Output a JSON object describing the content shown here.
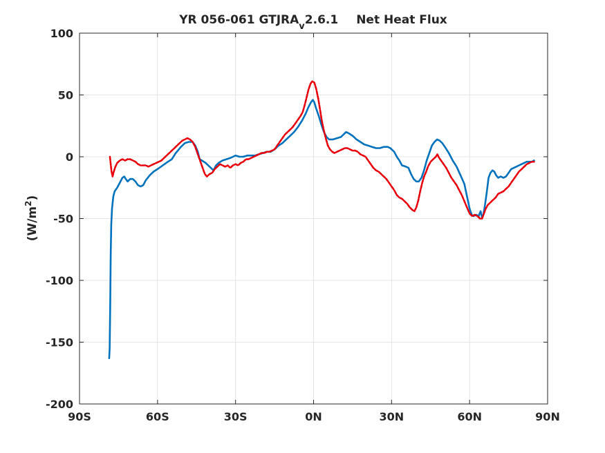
{
  "chart_data": {
    "type": "line",
    "title_main": "YR 056-061 GTJRA",
    "title_sub": "v",
    "title_version": "2.6.1",
    "title_var": "Net Heat Flux",
    "ylabel_main": "(W/m",
    "ylabel_sup": "2",
    "ylabel_end": ")",
    "xlabel": "",
    "xlim": [
      -90,
      90
    ],
    "ylim": [
      -200,
      100
    ],
    "xticks": [
      -90,
      -60,
      -30,
      0,
      30,
      60,
      90
    ],
    "xtick_labels": [
      "90S",
      "60S",
      "30S",
      "0N",
      "30N",
      "60N",
      "90N"
    ],
    "yticks": [
      -200,
      -150,
      -100,
      -50,
      0,
      50,
      100
    ],
    "ytick_labels": [
      "-200",
      "-150",
      "-100",
      "-50",
      "0",
      "50",
      "100"
    ],
    "grid": true,
    "series": [
      {
        "color": "#0072bd",
        "style": "solid",
        "points": [
          [
            -78.6,
            -163
          ],
          [
            -78.4,
            -155
          ],
          [
            -78.2,
            -120
          ],
          [
            -78.0,
            -80
          ],
          [
            -77.8,
            -55
          ],
          [
            -77.5,
            -42
          ],
          [
            -77.0,
            -32
          ],
          [
            -76.5,
            -28
          ],
          [
            -75.5,
            -25
          ],
          [
            -74.5,
            -21
          ],
          [
            -73.5,
            -17
          ],
          [
            -72.8,
            -16
          ],
          [
            -72.2,
            -18
          ],
          [
            -71.5,
            -20
          ],
          [
            -70.5,
            -18
          ],
          [
            -69.5,
            -18
          ],
          [
            -68.5,
            -20
          ],
          [
            -67.5,
            -23
          ],
          [
            -66.5,
            -24
          ],
          [
            -65.5,
            -23
          ],
          [
            -64.5,
            -19
          ],
          [
            -63.0,
            -15
          ],
          [
            -61.5,
            -12
          ],
          [
            -60.0,
            -10
          ],
          [
            -58.0,
            -7
          ],
          [
            -56.0,
            -4
          ],
          [
            -54.5,
            -2
          ],
          [
            -53.0,
            3
          ],
          [
            -51.0,
            8
          ],
          [
            -49.5,
            11
          ],
          [
            -48.0,
            12
          ],
          [
            -46.5,
            12
          ],
          [
            -45.5,
            9
          ],
          [
            -44.5,
            4
          ],
          [
            -43.8,
            -2
          ],
          [
            -43.0,
            -3
          ],
          [
            -41.5,
            -5
          ],
          [
            -40.0,
            -8
          ],
          [
            -38.5,
            -11
          ],
          [
            -37.5,
            -7
          ],
          [
            -36.5,
            -5
          ],
          [
            -35.0,
            -3
          ],
          [
            -33.5,
            -2
          ],
          [
            -32.0,
            -1
          ],
          [
            -31.0,
            0
          ],
          [
            -30.0,
            1
          ],
          [
            -28.5,
            0
          ],
          [
            -27.0,
            0
          ],
          [
            -25.5,
            1
          ],
          [
            -24.0,
            1
          ],
          [
            -22.5,
            1
          ],
          [
            -21.0,
            2
          ],
          [
            -19.5,
            3
          ],
          [
            -18.0,
            4
          ],
          [
            -16.5,
            4
          ],
          [
            -15.0,
            6
          ],
          [
            -13.5,
            9
          ],
          [
            -12.0,
            11
          ],
          [
            -10.5,
            14
          ],
          [
            -9.0,
            17
          ],
          [
            -7.5,
            20
          ],
          [
            -6.0,
            24
          ],
          [
            -4.5,
            29
          ],
          [
            -3.0,
            35
          ],
          [
            -2.0,
            40
          ],
          [
            -1.0,
            44
          ],
          [
            -0.3,
            46
          ],
          [
            0.3,
            44
          ],
          [
            1.0,
            39
          ],
          [
            2.0,
            33
          ],
          [
            3.0,
            26
          ],
          [
            4.0,
            20
          ],
          [
            5.0,
            16
          ],
          [
            6.0,
            14
          ],
          [
            7.5,
            14
          ],
          [
            9.0,
            15
          ],
          [
            10.5,
            16
          ],
          [
            11.5,
            18
          ],
          [
            12.5,
            20
          ],
          [
            13.5,
            19
          ],
          [
            15.0,
            17
          ],
          [
            16.5,
            14
          ],
          [
            18.0,
            12
          ],
          [
            19.5,
            10
          ],
          [
            21.0,
            9
          ],
          [
            22.5,
            8
          ],
          [
            24.0,
            7
          ],
          [
            25.5,
            7
          ],
          [
            27.0,
            8
          ],
          [
            28.5,
            8
          ],
          [
            29.5,
            7
          ],
          [
            31.0,
            4
          ],
          [
            32.0,
            0
          ],
          [
            33.0,
            -3
          ],
          [
            34.0,
            -7
          ],
          [
            35.5,
            -8
          ],
          [
            36.5,
            -9
          ],
          [
            37.5,
            -14
          ],
          [
            38.5,
            -18
          ],
          [
            39.5,
            -20
          ],
          [
            40.5,
            -20
          ],
          [
            41.5,
            -17
          ],
          [
            42.5,
            -11
          ],
          [
            43.5,
            -3
          ],
          [
            44.5,
            3
          ],
          [
            45.5,
            9
          ],
          [
            46.5,
            12
          ],
          [
            47.5,
            14
          ],
          [
            48.5,
            13
          ],
          [
            49.5,
            11
          ],
          [
            50.5,
            8
          ],
          [
            52.0,
            3
          ],
          [
            53.5,
            -3
          ],
          [
            55.0,
            -8
          ],
          [
            56.5,
            -15
          ],
          [
            58.0,
            -22
          ],
          [
            59.0,
            -32
          ],
          [
            60.0,
            -42
          ],
          [
            60.8,
            -47
          ],
          [
            61.5,
            -48
          ],
          [
            62.5,
            -47
          ],
          [
            63.5,
            -48
          ],
          [
            64.2,
            -44
          ],
          [
            64.8,
            -49
          ],
          [
            65.3,
            -47
          ],
          [
            66.0,
            -38
          ],
          [
            66.7,
            -27
          ],
          [
            67.3,
            -17
          ],
          [
            68.0,
            -13
          ],
          [
            68.8,
            -11
          ],
          [
            69.5,
            -12
          ],
          [
            70.2,
            -15
          ],
          [
            71.0,
            -17
          ],
          [
            72.0,
            -16
          ],
          [
            73.0,
            -17
          ],
          [
            74.0,
            -16
          ],
          [
            75.0,
            -13
          ],
          [
            76.0,
            -10
          ],
          [
            77.0,
            -9
          ],
          [
            78.0,
            -8
          ],
          [
            79.0,
            -7
          ],
          [
            80.0,
            -6
          ],
          [
            81.0,
            -5
          ],
          [
            82.0,
            -4
          ],
          [
            83.0,
            -4
          ],
          [
            84.0,
            -4
          ],
          [
            84.8,
            -3
          ]
        ]
      },
      {
        "color": "#e8000b",
        "style": "dashed",
        "points": [
          [
            -78.3,
            0
          ],
          [
            -78.0,
            -6
          ],
          [
            -77.7,
            -12
          ],
          [
            -77.3,
            -16
          ],
          [
            -76.8,
            -12
          ],
          [
            -76.2,
            -8
          ],
          [
            -75.5,
            -5
          ],
          [
            -74.5,
            -3
          ],
          [
            -73.5,
            -2
          ],
          [
            -72.5,
            -3
          ],
          [
            -71.5,
            -2
          ],
          [
            -70.5,
            -2
          ],
          [
            -69.5,
            -3
          ],
          [
            -68.5,
            -4
          ],
          [
            -67.5,
            -6
          ],
          [
            -66.5,
            -7
          ],
          [
            -65.5,
            -7
          ],
          [
            -64.5,
            -7
          ],
          [
            -63.5,
            -8
          ],
          [
            -62.5,
            -7
          ],
          [
            -61.5,
            -6
          ],
          [
            -60.5,
            -5
          ],
          [
            -59.5,
            -4
          ],
          [
            -58.5,
            -3
          ],
          [
            -57.5,
            -1
          ],
          [
            -56.5,
            1
          ],
          [
            -55.5,
            3
          ],
          [
            -54.5,
            5
          ],
          [
            -53.5,
            7
          ],
          [
            -52.5,
            9
          ],
          [
            -51.5,
            11
          ],
          [
            -50.5,
            13
          ],
          [
            -49.5,
            14
          ],
          [
            -48.5,
            15
          ],
          [
            -47.5,
            14
          ],
          [
            -46.5,
            12
          ],
          [
            -45.5,
            8
          ],
          [
            -44.5,
            2
          ],
          [
            -43.5,
            -4
          ],
          [
            -42.5,
            -10
          ],
          [
            -41.8,
            -14
          ],
          [
            -41.0,
            -16
          ],
          [
            -40.0,
            -14
          ],
          [
            -39.0,
            -13
          ],
          [
            -38.0,
            -10
          ],
          [
            -37.0,
            -8
          ],
          [
            -36.0,
            -6
          ],
          [
            -35.0,
            -7
          ],
          [
            -34.0,
            -8
          ],
          [
            -33.0,
            -7
          ],
          [
            -32.0,
            -9
          ],
          [
            -31.0,
            -7
          ],
          [
            -30.0,
            -6
          ],
          [
            -29.0,
            -7
          ],
          [
            -28.0,
            -5
          ],
          [
            -27.0,
            -4
          ],
          [
            -26.0,
            -2
          ],
          [
            -25.0,
            -2
          ],
          [
            -24.0,
            -1
          ],
          [
            -23.0,
            0
          ],
          [
            -22.0,
            1
          ],
          [
            -21.0,
            2
          ],
          [
            -20.0,
            3
          ],
          [
            -19.0,
            3
          ],
          [
            -18.0,
            4
          ],
          [
            -17.0,
            4
          ],
          [
            -16.0,
            5
          ],
          [
            -15.0,
            6
          ],
          [
            -14.0,
            9
          ],
          [
            -13.0,
            12
          ],
          [
            -12.0,
            15
          ],
          [
            -11.0,
            18
          ],
          [
            -10.0,
            20
          ],
          [
            -9.0,
            22
          ],
          [
            -8.0,
            24
          ],
          [
            -7.0,
            27
          ],
          [
            -6.0,
            30
          ],
          [
            -5.0,
            33
          ],
          [
            -4.2,
            36
          ],
          [
            -3.5,
            41
          ],
          [
            -2.8,
            47
          ],
          [
            -2.0,
            54
          ],
          [
            -1.2,
            59
          ],
          [
            -0.5,
            61
          ],
          [
            0.3,
            60
          ],
          [
            1.0,
            55
          ],
          [
            1.8,
            47
          ],
          [
            2.5,
            38
          ],
          [
            3.2,
            29
          ],
          [
            4.0,
            21
          ],
          [
            4.8,
            14
          ],
          [
            5.5,
            9
          ],
          [
            6.3,
            6
          ],
          [
            7.2,
            4
          ],
          [
            8.0,
            3
          ],
          [
            9.0,
            4
          ],
          [
            10.0,
            5
          ],
          [
            11.0,
            6
          ],
          [
            12.0,
            7
          ],
          [
            13.0,
            7
          ],
          [
            14.0,
            6
          ],
          [
            15.0,
            5
          ],
          [
            16.0,
            5
          ],
          [
            17.0,
            4
          ],
          [
            18.0,
            2
          ],
          [
            19.0,
            1
          ],
          [
            20.0,
            0
          ],
          [
            21.0,
            -3
          ],
          [
            22.0,
            -6
          ],
          [
            23.0,
            -9
          ],
          [
            24.0,
            -11
          ],
          [
            25.0,
            -12
          ],
          [
            26.0,
            -14
          ],
          [
            27.0,
            -16
          ],
          [
            28.0,
            -18
          ],
          [
            29.0,
            -21
          ],
          [
            30.0,
            -24
          ],
          [
            31.0,
            -27
          ],
          [
            32.0,
            -31
          ],
          [
            33.0,
            -33
          ],
          [
            34.0,
            -34
          ],
          [
            35.0,
            -36
          ],
          [
            36.0,
            -38
          ],
          [
            37.0,
            -41
          ],
          [
            38.0,
            -43
          ],
          [
            38.8,
            -44
          ],
          [
            39.5,
            -41
          ],
          [
            40.3,
            -35
          ],
          [
            41.0,
            -28
          ],
          [
            41.8,
            -21
          ],
          [
            42.5,
            -16
          ],
          [
            43.3,
            -12
          ],
          [
            44.0,
            -8
          ],
          [
            45.0,
            -4
          ],
          [
            46.0,
            -2
          ],
          [
            47.0,
            0
          ],
          [
            47.6,
            2
          ],
          [
            48.3,
            -1
          ],
          [
            49.0,
            -3
          ],
          [
            50.0,
            -6
          ],
          [
            51.0,
            -9
          ],
          [
            52.0,
            -13
          ],
          [
            53.0,
            -17
          ],
          [
            54.0,
            -20
          ],
          [
            55.0,
            -23
          ],
          [
            56.0,
            -27
          ],
          [
            57.0,
            -31
          ],
          [
            58.0,
            -36
          ],
          [
            59.0,
            -41
          ],
          [
            60.0,
            -46
          ],
          [
            61.0,
            -48
          ],
          [
            62.0,
            -47
          ],
          [
            63.0,
            -48
          ],
          [
            64.0,
            -50
          ],
          [
            64.8,
            -50
          ],
          [
            65.5,
            -46
          ],
          [
            66.2,
            -42
          ],
          [
            67.0,
            -39
          ],
          [
            68.0,
            -37
          ],
          [
            69.0,
            -35
          ],
          [
            70.0,
            -33
          ],
          [
            71.0,
            -30
          ],
          [
            72.0,
            -29
          ],
          [
            73.0,
            -28
          ],
          [
            74.0,
            -26
          ],
          [
            75.0,
            -24
          ],
          [
            76.0,
            -21
          ],
          [
            77.0,
            -18
          ],
          [
            78.0,
            -15
          ],
          [
            79.0,
            -12
          ],
          [
            80.0,
            -10
          ],
          [
            81.0,
            -8
          ],
          [
            82.0,
            -6
          ],
          [
            83.0,
            -5
          ],
          [
            84.0,
            -4
          ],
          [
            84.8,
            -4
          ]
        ]
      }
    ]
  }
}
